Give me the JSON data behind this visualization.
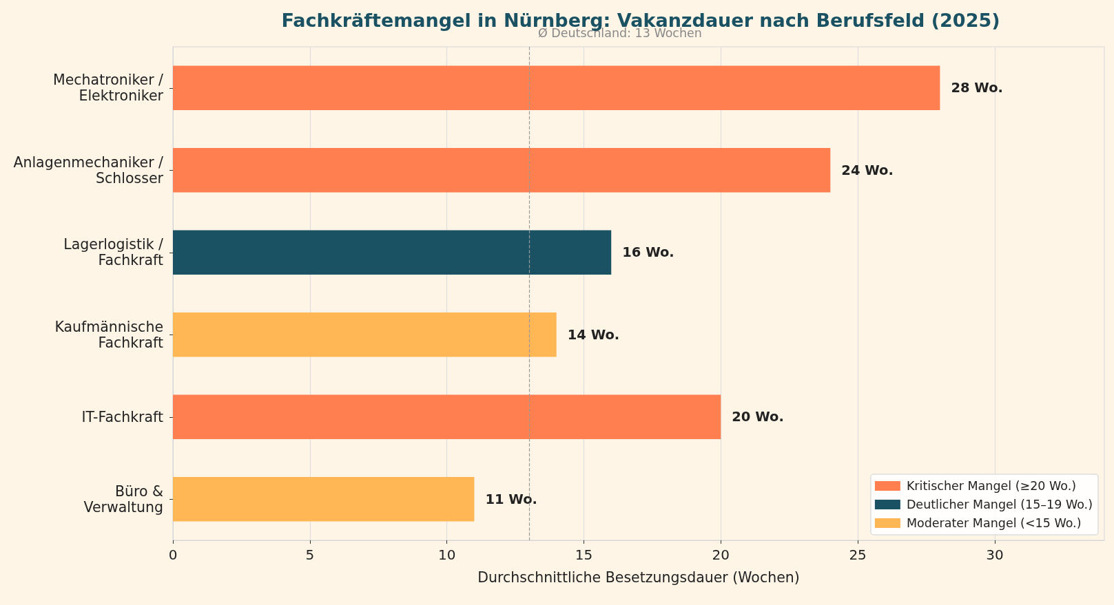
{
  "chart_data": {
    "type": "bar",
    "orientation": "horizontal",
    "stacked": true,
    "title": "Fachkräftemangel in Nürnberg: Vakanzdauer nach Berufsfeld (2025)",
    "xlabel": "Durchschnittliche Besetzungsdauer (Wochen)",
    "categories": [
      "Mechatroniker /\nElektroniker",
      "Anlagenmechaniker /\nSchlosser",
      "Lagerlogistik /\nFachkraft",
      "Kaufmännische\nFachkraft",
      "IT-Fachkraft",
      "Büro &\nVerwaltung"
    ],
    "series": [
      {
        "name": "Kritischer Mangel (≥20 Wo.)",
        "color": "#ff7f50",
        "values": [
          28,
          24,
          null,
          null,
          20,
          null
        ],
        "value_labels": [
          "28 Wo.",
          "24 Wo.",
          null,
          null,
          "20 Wo.",
          null
        ]
      },
      {
        "name": "Deutlicher Mangel (15–19 Wo.)",
        "color": "#1a5263",
        "values": [
          null,
          null,
          16,
          null,
          null,
          null
        ],
        "value_labels": [
          null,
          null,
          "16 Wo.",
          null,
          null,
          null
        ]
      },
      {
        "name": "Moderater Mangel (<15 Wo.)",
        "color": "#ffb755",
        "values": [
          null,
          null,
          null,
          14,
          null,
          11
        ],
        "value_labels": [
          null,
          null,
          null,
          "14 Wo.",
          null,
          "11 Wo."
        ]
      }
    ],
    "xlim": [
      0,
      34
    ],
    "xticks": [
      0,
      5,
      10,
      15,
      20,
      25,
      30
    ],
    "grid": "x",
    "legend": "bottom right",
    "ref_lines": [
      {
        "axis": "x",
        "value": 13,
        "label": "Ø Deutschland: 13 Wochen",
        "color": "#999999",
        "line_style": "dashed"
      }
    ]
  }
}
